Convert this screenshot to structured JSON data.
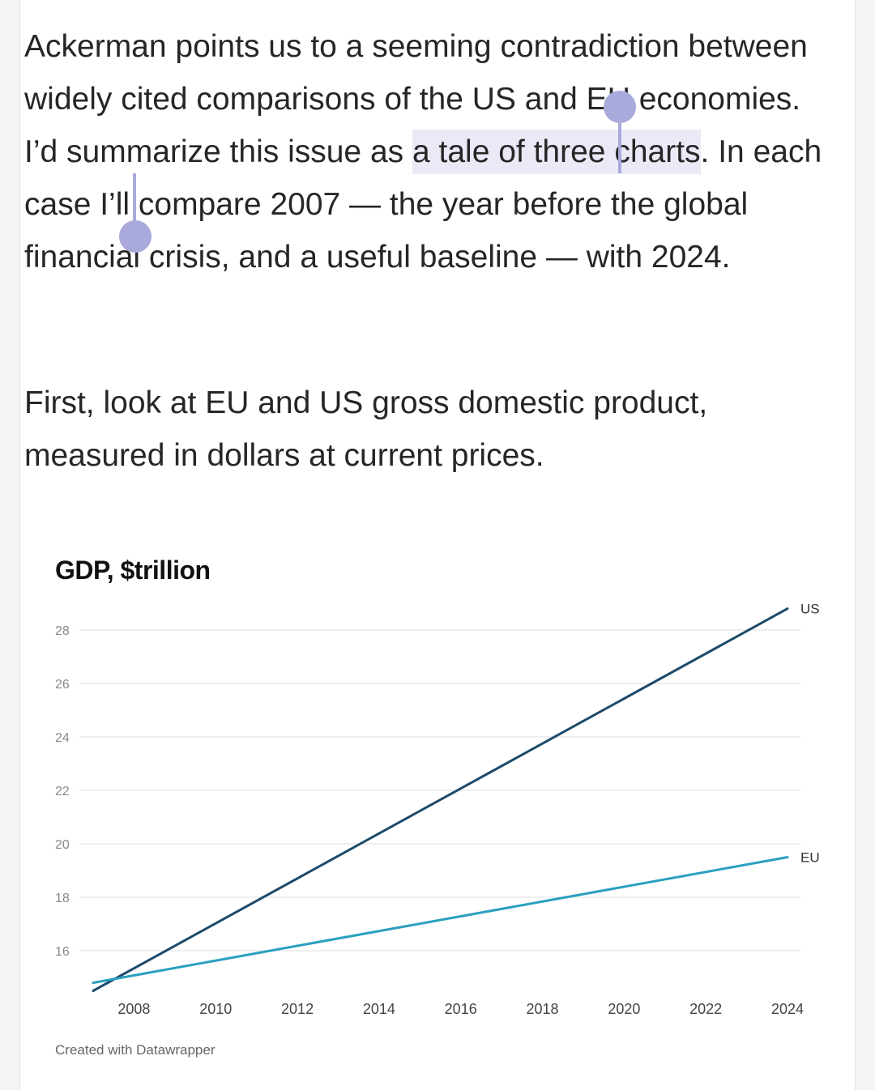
{
  "article": {
    "p1_before": "Ackerman points us to a seeming contradiction between widely cited comparisons of the US and EU economies. I’d summarize this issue as ",
    "p1_highlight": "a tale of three charts",
    "p1_after": ". In each case I’ll compare 2007 — the year before the global financial crisis, and a useful baseline — with 2024.",
    "p2": "First, look at EU and US gross domestic product, measured in dollars at current prices."
  },
  "colors": {
    "selection": "#eaeaf7",
    "selection_handle": "#a9aadb",
    "us_line": "#1d4a6b",
    "eu_line": "#2aa0bf"
  },
  "chart_data": {
    "type": "line",
    "title": "GDP, $trillion",
    "x": [
      2007,
      2024
    ],
    "xticks": [
      2008,
      2010,
      2012,
      2014,
      2016,
      2018,
      2020,
      2022,
      2024
    ],
    "yticks": [
      16,
      18,
      20,
      22,
      24,
      26,
      28
    ],
    "ylim": [
      14,
      29
    ],
    "xlim": [
      2007,
      2024
    ],
    "grid": true,
    "series": [
      {
        "name": "US",
        "values": [
          14.5,
          28.8
        ],
        "color": "#1d4a6b"
      },
      {
        "name": "EU",
        "values": [
          14.8,
          19.5
        ],
        "color": "#2aa0bf"
      }
    ],
    "credit": "Created with Datawrapper"
  }
}
